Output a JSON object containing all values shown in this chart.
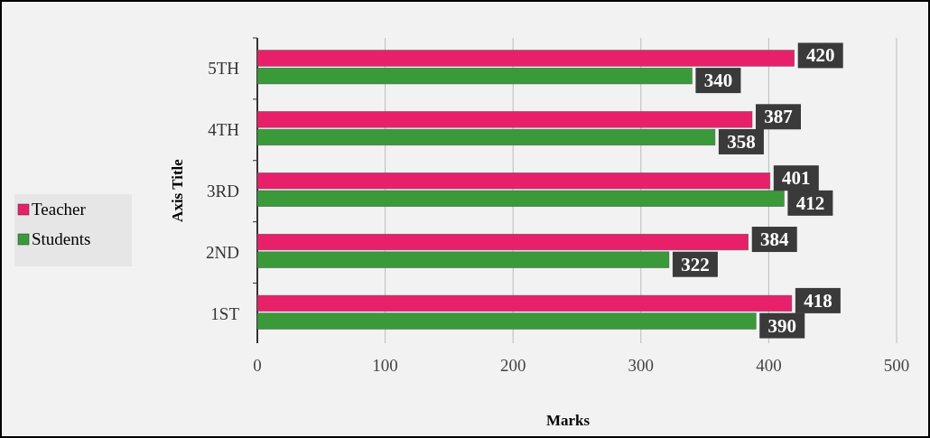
{
  "chart_data": {
    "type": "bar",
    "orientation": "horizontal",
    "xlabel": "Marks",
    "ylabel": "Axis Title",
    "categories": [
      "5TH",
      "4TH",
      "3RD",
      "2ND",
      "1ST"
    ],
    "series": [
      {
        "name": "Teacher",
        "color": "#e8206a",
        "values": [
          420,
          387,
          401,
          384,
          418
        ]
      },
      {
        "name": "Students",
        "color": "#3a9a3a",
        "values": [
          340,
          358,
          412,
          322,
          390
        ]
      }
    ],
    "xlim": [
      0,
      500
    ],
    "xticks": [
      0,
      100,
      200,
      300,
      400,
      500
    ],
    "grid": "x",
    "legend": "left",
    "data_labels": true
  }
}
